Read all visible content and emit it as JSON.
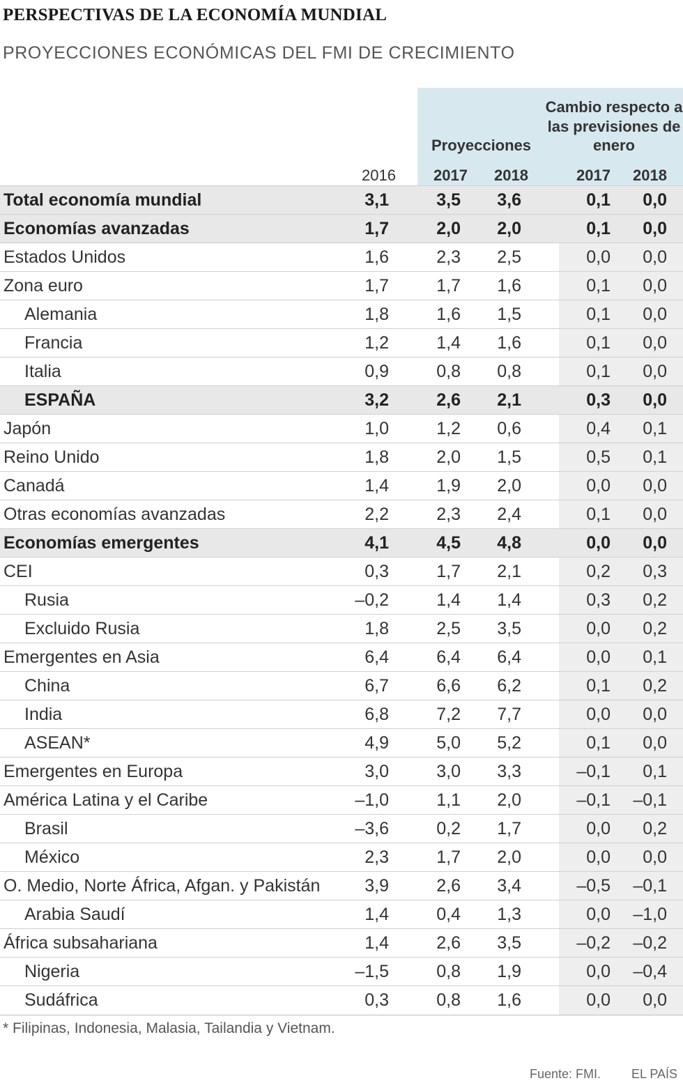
{
  "title": "PERSPECTIVAS DE LA ECONOMÍA MUNDIAL",
  "subtitle": "PROYECCIONES ECONÓMICAS DEL FMI DE CRECIMIENTO",
  "header": {
    "projections": "Proyecciones",
    "change": "Cambio respecto a las previsiones de enero",
    "years": [
      "2016",
      "2017",
      "2018",
      "2017",
      "2018"
    ]
  },
  "rows": [
    {
      "label": "Total economía mundial",
      "values": [
        "3,1",
        "3,5",
        "3,6",
        "0,1",
        "0,0"
      ]
    },
    {
      "label": "Economías avanzadas",
      "values": [
        "1,7",
        "2,0",
        "2,0",
        "0,1",
        "0,0"
      ]
    },
    {
      "label": "Estados Unidos",
      "values": [
        "1,6",
        "2,3",
        "2,5",
        "0,0",
        "0,0"
      ]
    },
    {
      "label": "Zona euro",
      "values": [
        "1,7",
        "1,7",
        "1,6",
        "0,1",
        "0,0"
      ]
    },
    {
      "label": "Alemania",
      "values": [
        "1,8",
        "1,6",
        "1,5",
        "0,1",
        "0,0"
      ]
    },
    {
      "label": "Francia",
      "values": [
        "1,2",
        "1,4",
        "1,6",
        "0,1",
        "0,0"
      ]
    },
    {
      "label": "Italia",
      "values": [
        "0,9",
        "0,8",
        "0,8",
        "0,1",
        "0,0"
      ]
    },
    {
      "label": "ESPAÑA",
      "values": [
        "3,2",
        "2,6",
        "2,1",
        "0,3",
        "0,0"
      ]
    },
    {
      "label": "Japón",
      "values": [
        "1,0",
        "1,2",
        "0,6",
        "0,4",
        "0,1"
      ]
    },
    {
      "label": "Reino Unido",
      "values": [
        "1,8",
        "2,0",
        "1,5",
        "0,5",
        "0,1"
      ]
    },
    {
      "label": "Canadá",
      "values": [
        "1,4",
        "1,9",
        "2,0",
        "0,0",
        "0,0"
      ]
    },
    {
      "label": "Otras economías avanzadas",
      "values": [
        "2,2",
        "2,3",
        "2,4",
        "0,1",
        "0,0"
      ]
    },
    {
      "label": "Economías emergentes",
      "values": [
        "4,1",
        "4,5",
        "4,8",
        "0,0",
        "0,0"
      ]
    },
    {
      "label": "CEI",
      "values": [
        "0,3",
        "1,7",
        "2,1",
        "0,2",
        "0,3"
      ]
    },
    {
      "label": "Rusia",
      "values": [
        "–0,2",
        "1,4",
        "1,4",
        "0,3",
        "0,2"
      ]
    },
    {
      "label": "Excluido Rusia",
      "values": [
        "1,8",
        "2,5",
        "3,5",
        "0,0",
        "0,2"
      ]
    },
    {
      "label": "Emergentes en Asia",
      "values": [
        "6,4",
        "6,4",
        "6,4",
        "0,0",
        "0,1"
      ]
    },
    {
      "label": "China",
      "values": [
        "6,7",
        "6,6",
        "6,2",
        "0,1",
        "0,2"
      ]
    },
    {
      "label": "India",
      "values": [
        "6,8",
        "7,2",
        "7,7",
        "0,0",
        "0,0"
      ]
    },
    {
      "label": "ASEAN*",
      "values": [
        "4,9",
        "5,0",
        "5,2",
        "0,1",
        "0,0"
      ]
    },
    {
      "label": "Emergentes en Europa",
      "values": [
        "3,0",
        "3,0",
        "3,3",
        "–0,1",
        "0,1"
      ]
    },
    {
      "label": "América Latina y el Caribe",
      "values": [
        "–1,0",
        "1,1",
        "2,0",
        "–0,1",
        "–0,1"
      ]
    },
    {
      "label": "Brasil",
      "values": [
        "–3,6",
        "0,2",
        "1,7",
        "0,0",
        "0,2"
      ]
    },
    {
      "label": "México",
      "values": [
        "2,3",
        "1,7",
        "2,0",
        "0,0",
        "0,0"
      ]
    },
    {
      "label": "O. Medio, Norte África, Afgan. y Pakistán",
      "values": [
        "3,9",
        "2,6",
        "3,4",
        "–0,5",
        "–0,1"
      ]
    },
    {
      "label": "Arabia Saudí",
      "values": [
        "1,4",
        "0,4",
        "1,3",
        "0,0",
        "–1,0"
      ]
    },
    {
      "label": "África subsahariana",
      "values": [
        "1,4",
        "2,6",
        "3,5",
        "–0,2",
        "–0,2"
      ]
    },
    {
      "label": "Nigeria",
      "values": [
        "–1,5",
        "0,8",
        "1,9",
        "0,0",
        "–0,4"
      ]
    },
    {
      "label": "Sudáfrica",
      "values": [
        "0,3",
        "0,8",
        "1,6",
        "0,0",
        "0,0"
      ]
    }
  ],
  "footnote": "* Filipinas, Indonesia, Malasia, Tailandia y Vietnam.",
  "source": "Fuente: FMI.",
  "brand": "EL PAÍS",
  "colors": {
    "header_band": "#d8e8ef",
    "bold_row": "#e8e8e8",
    "change_column": "#eeeeee"
  }
}
